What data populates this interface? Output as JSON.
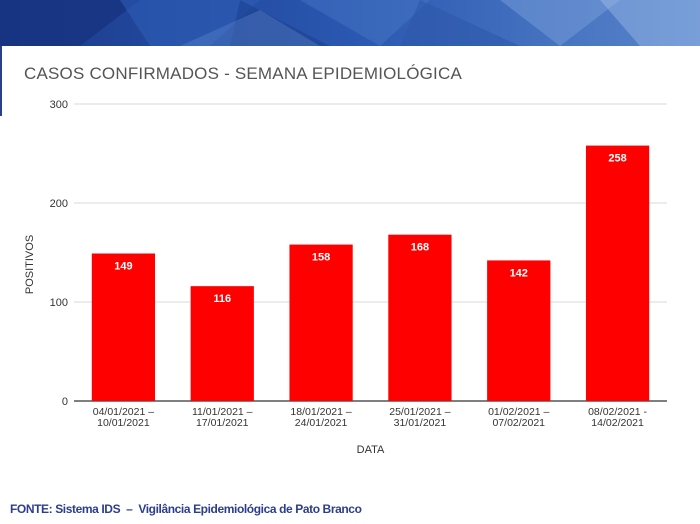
{
  "header": {
    "title": "CASOS CONFIRMADOS - SEMANA EPIDEMIOLÓGICA"
  },
  "footer": {
    "prefix": "FONTE:",
    "source1": "Sistema IDS",
    "separator": "–",
    "source2": "Vigilância Epidemiológica de Pato Branco"
  },
  "colors": {
    "bar": "#ff0000",
    "banner": "#1f3f8f",
    "footer_text": "#2c3e8c"
  },
  "chart_data": {
    "type": "bar",
    "xlabel": "DATA",
    "ylabel": "POSITIVOS",
    "ylim": [
      0,
      300
    ],
    "yticks": [
      0,
      100,
      200,
      300
    ],
    "grid": true,
    "categories": [
      [
        "04/01/2021 –",
        "10/01/2021"
      ],
      [
        "11/01/2021 –",
        "17/01/2021"
      ],
      [
        "18/01/2021 –",
        "24/01/2021"
      ],
      [
        "25/01/2021 –",
        "31/01/2021"
      ],
      [
        "01/02/2021 –",
        "07/02/2021"
      ],
      [
        "08/02/2021 -",
        "14/02/2021"
      ]
    ],
    "values": [
      149,
      116,
      158,
      168,
      142,
      258
    ]
  }
}
